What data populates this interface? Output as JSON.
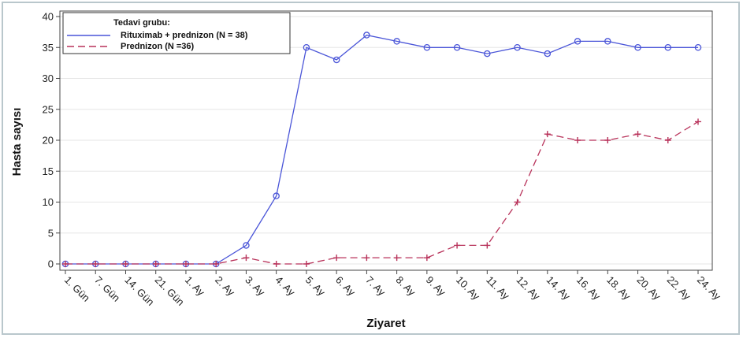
{
  "chart_data": {
    "type": "line",
    "xlabel": "Ziyaret",
    "ylabel": "Hasta sayısı",
    "ylim": [
      0,
      40
    ],
    "yticks": [
      0,
      5,
      10,
      15,
      20,
      25,
      30,
      35,
      40
    ],
    "categories": [
      "1. Gün",
      "7. Gün",
      "14. Gün",
      "21. Gün",
      "1. Ay",
      "2. Ay",
      "3. Ay",
      "4. Ay",
      "5. Ay",
      "6. Ay",
      "7. Ay",
      "8. Ay",
      "9. Ay",
      "10. Ay",
      "11. Ay",
      "12. Ay",
      "14. Ay",
      "16. Ay",
      "18. Ay",
      "20. Ay",
      "22. Ay",
      "24. Ay"
    ],
    "legend": {
      "title": "Tedavi grubu:",
      "position": "top-left"
    },
    "grid": "horizontal",
    "series": [
      {
        "name": "Rituximab + prednizon (N = 38)",
        "color": "#4a55d8",
        "line": "solid",
        "marker": "circle",
        "values": [
          0,
          0,
          0,
          0,
          0,
          0,
          3,
          11,
          35,
          33,
          37,
          36,
          35,
          35,
          34,
          35,
          34,
          36,
          36,
          35,
          35,
          35
        ]
      },
      {
        "name": "Prednizon (N =36)",
        "color": "#b8325a",
        "line": "dashed",
        "marker": "plus",
        "values": [
          0,
          0,
          0,
          0,
          0,
          0,
          1,
          0,
          0,
          1,
          1,
          1,
          1,
          3,
          3,
          10,
          21,
          20,
          20,
          21,
          20,
          23
        ]
      }
    ]
  }
}
